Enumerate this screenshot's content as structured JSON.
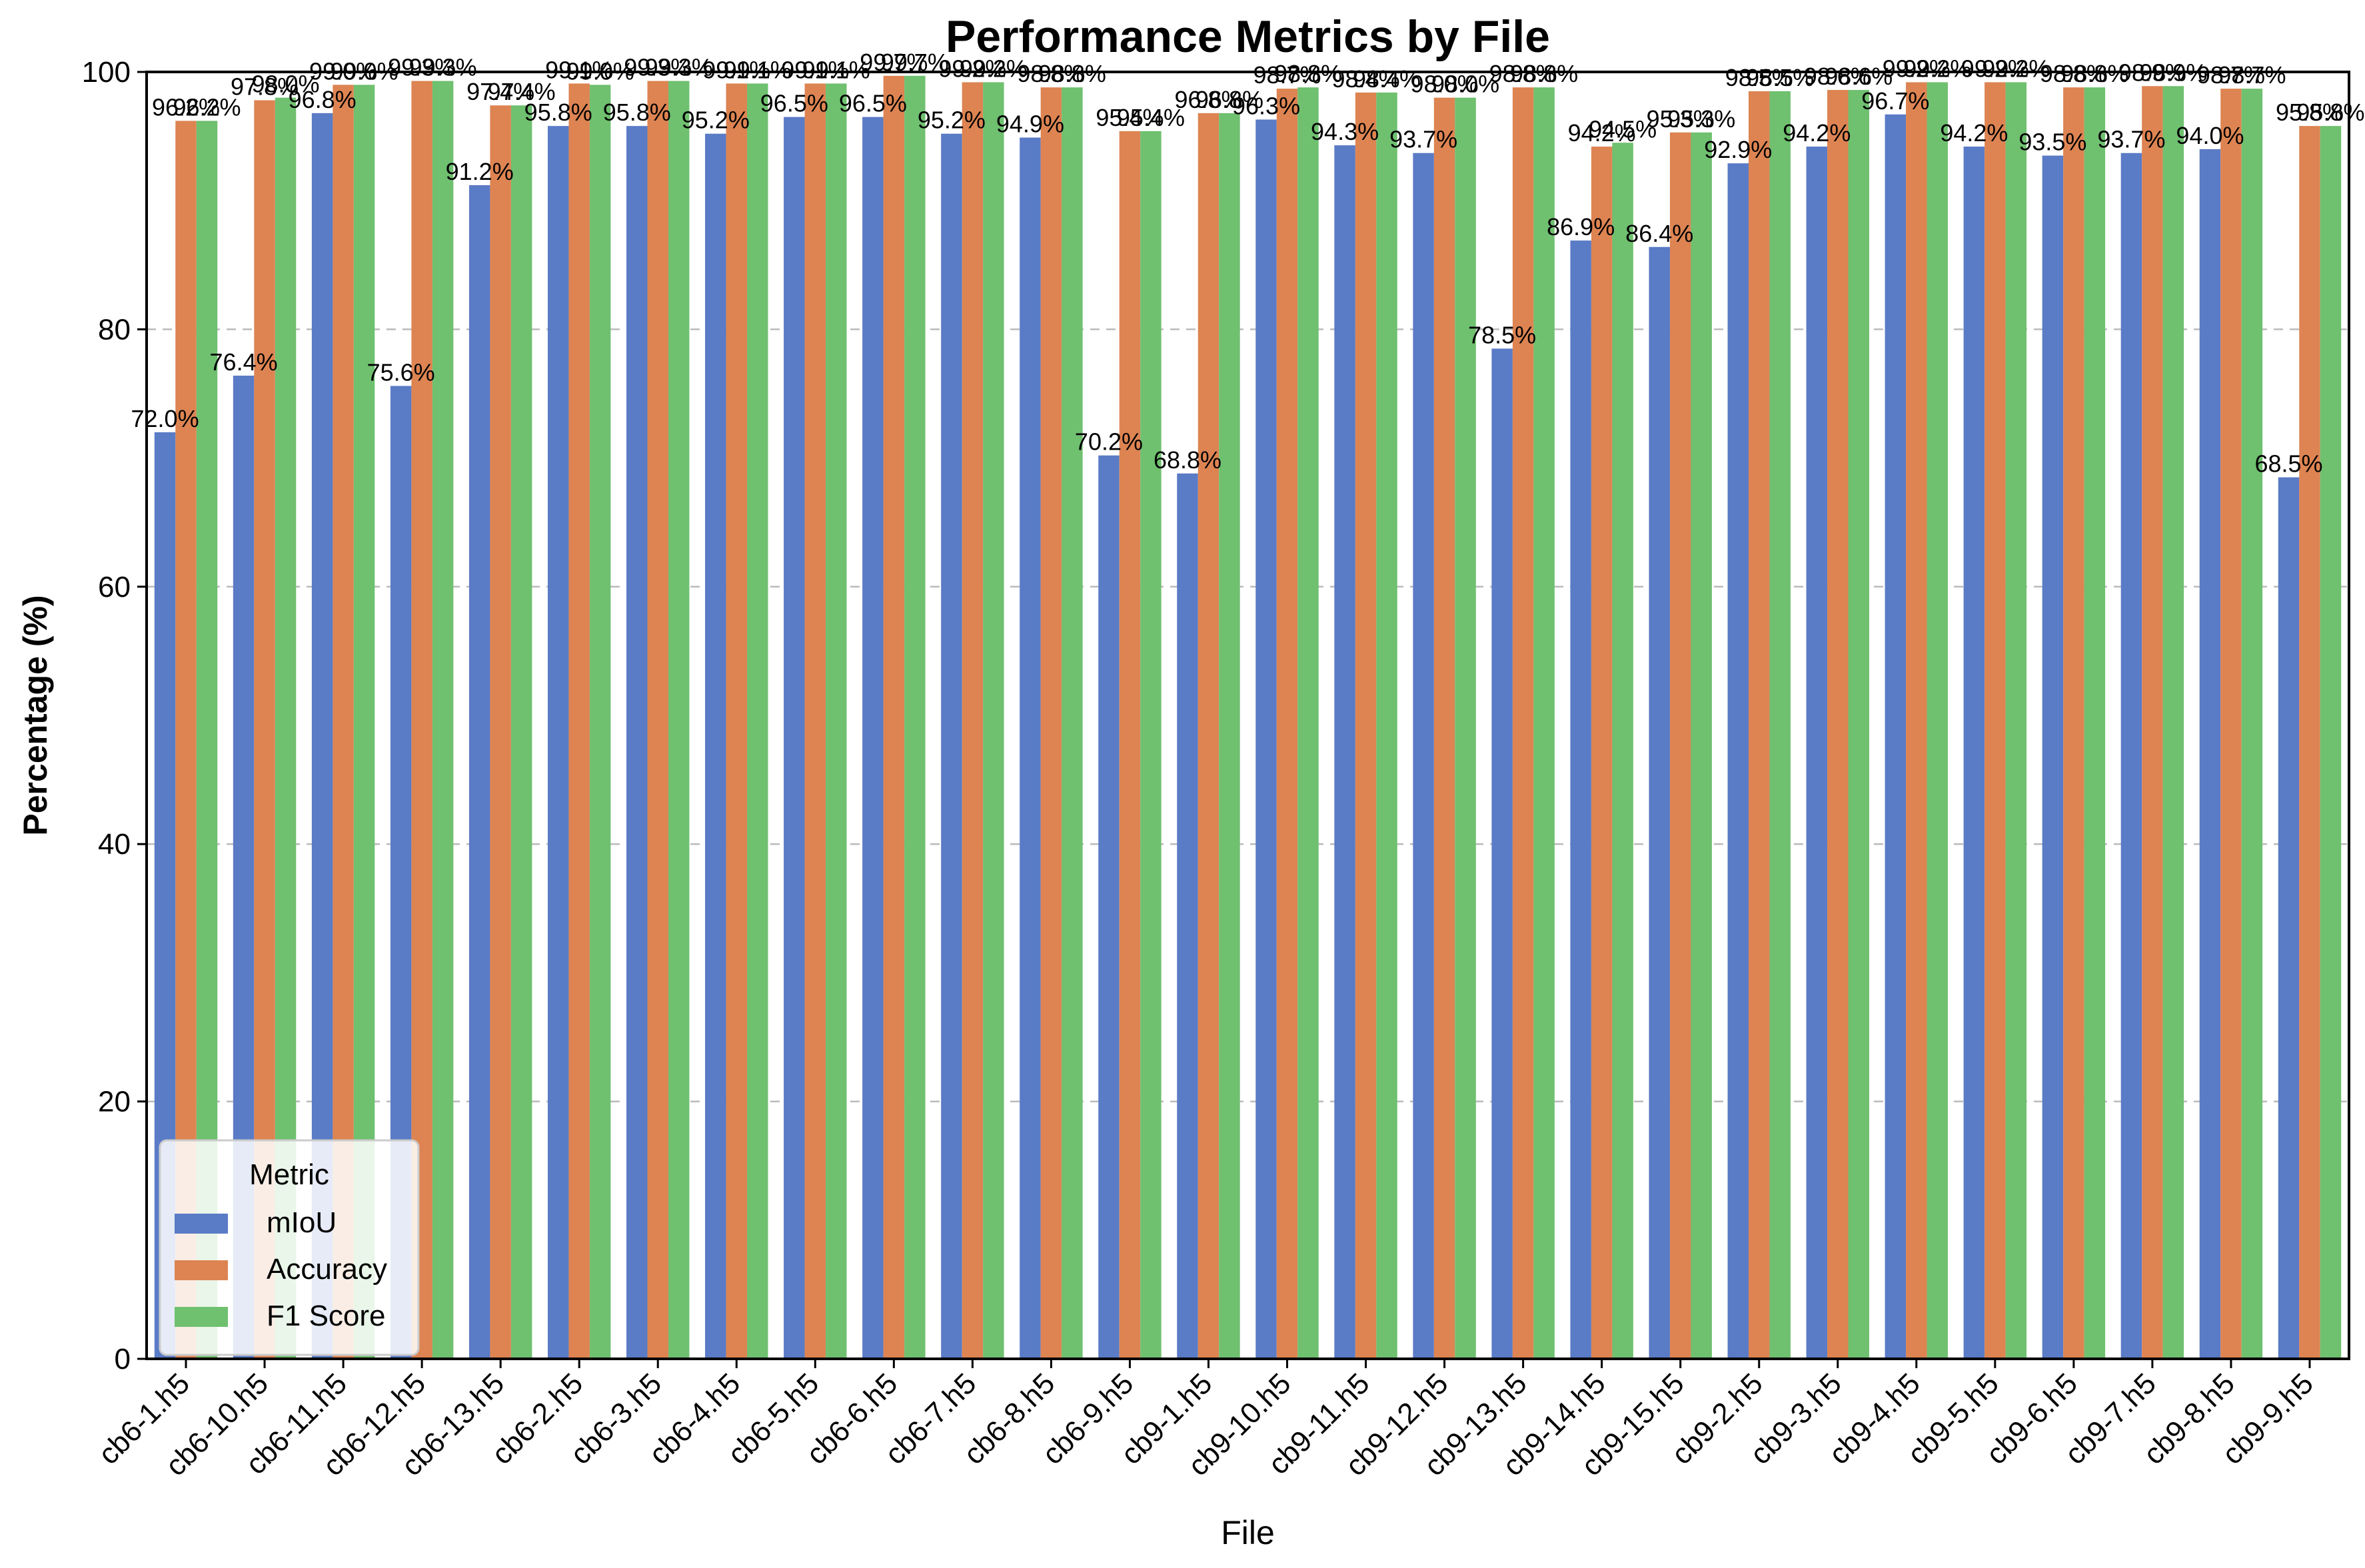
{
  "chart_data": {
    "type": "bar",
    "title": "Performance Metrics by File",
    "xlabel": "File",
    "ylabel": "Percentage (%)",
    "ylim": [
      0,
      100
    ],
    "yticks": [
      0,
      20,
      40,
      60,
      80,
      100
    ],
    "grid": "horizontal dashed",
    "legend": {
      "title": "Metric",
      "placement": "lower-left"
    },
    "categories": [
      "cb6-1.h5",
      "cb6-10.h5",
      "cb6-11.h5",
      "cb6-12.h5",
      "cb6-13.h5",
      "cb6-2.h5",
      "cb6-3.h5",
      "cb6-4.h5",
      "cb6-5.h5",
      "cb6-6.h5",
      "cb6-7.h5",
      "cb6-8.h5",
      "cb6-9.h5",
      "cb9-1.h5",
      "cb9-10.h5",
      "cb9-11.h5",
      "cb9-12.h5",
      "cb9-13.h5",
      "cb9-14.h5",
      "cb9-15.h5",
      "cb9-2.h5",
      "cb9-3.h5",
      "cb9-4.h5",
      "cb9-5.h5",
      "cb9-6.h5",
      "cb9-7.h5",
      "cb9-8.h5",
      "cb9-9.h5"
    ],
    "series": [
      {
        "name": "mIoU",
        "color": "#5a7bc6",
        "values": [
          72.0,
          76.4,
          96.8,
          75.6,
          91.2,
          95.8,
          95.8,
          95.2,
          96.5,
          96.5,
          95.2,
          94.9,
          70.2,
          68.8,
          96.3,
          94.3,
          93.7,
          78.5,
          86.9,
          86.4,
          92.9,
          94.2,
          96.7,
          94.2,
          93.5,
          93.7,
          94.0,
          68.5
        ]
      },
      {
        "name": "Accuracy",
        "color": "#dd8452",
        "values": [
          96.2,
          97.8,
          99.0,
          99.3,
          97.4,
          99.1,
          99.3,
          99.1,
          99.1,
          99.7,
          99.2,
          98.8,
          95.4,
          96.8,
          98.7,
          98.4,
          98.0,
          98.8,
          94.2,
          95.3,
          98.5,
          98.6,
          99.2,
          99.2,
          98.8,
          98.9,
          98.7,
          95.8
        ]
      },
      {
        "name": "F1 Score",
        "color": "#6fc06f",
        "values": [
          96.2,
          98.0,
          99.0,
          99.3,
          97.4,
          99.0,
          99.3,
          99.1,
          99.1,
          99.7,
          99.2,
          98.8,
          95.4,
          96.8,
          98.8,
          98.4,
          98.0,
          98.8,
          94.5,
          95.3,
          98.5,
          98.6,
          99.2,
          99.2,
          98.8,
          98.9,
          98.7,
          95.8
        ]
      }
    ]
  }
}
